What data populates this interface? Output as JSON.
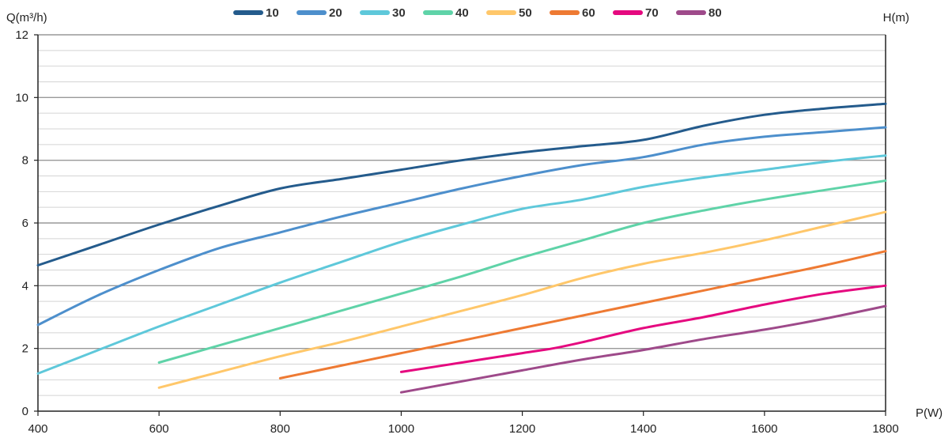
{
  "chart_data": {
    "type": "line",
    "xlabel": "P(W)",
    "ylabel": "Q(m³/h)",
    "legend_title": "H(m)",
    "legend_position": "top",
    "grid": true,
    "xlim": [
      400,
      1800
    ],
    "ylim": [
      0,
      12
    ],
    "x_ticks": [
      "400",
      "600",
      "800",
      "1000",
      "1200",
      "1400",
      "1600",
      "1800"
    ],
    "y_ticks": [
      "0",
      "2",
      "4",
      "6",
      "8",
      "10",
      "12"
    ],
    "series": [
      {
        "name": "10",
        "color": "#245b8c",
        "x": [
          400,
          500,
          600,
          700,
          800,
          900,
          1000,
          1100,
          1200,
          1300,
          1400,
          1500,
          1600,
          1700,
          1800
        ],
        "y": [
          4.65,
          5.3,
          5.95,
          6.55,
          7.1,
          7.4,
          7.7,
          8.0,
          8.25,
          8.45,
          8.65,
          9.1,
          9.45,
          9.65,
          9.8
        ]
      },
      {
        "name": "20",
        "color": "#4d8fcc",
        "x": [
          400,
          500,
          600,
          700,
          800,
          900,
          1000,
          1100,
          1200,
          1300,
          1400,
          1500,
          1600,
          1700,
          1800
        ],
        "y": [
          2.75,
          3.7,
          4.5,
          5.2,
          5.7,
          6.2,
          6.65,
          7.1,
          7.5,
          7.85,
          8.1,
          8.5,
          8.75,
          8.9,
          9.05
        ]
      },
      {
        "name": "30",
        "color": "#5ec8da",
        "x": [
          400,
          500,
          600,
          700,
          800,
          900,
          1000,
          1100,
          1200,
          1300,
          1400,
          1500,
          1600,
          1700,
          1800
        ],
        "y": [
          1.2,
          1.95,
          2.7,
          3.4,
          4.1,
          4.75,
          5.4,
          5.95,
          6.45,
          6.75,
          7.15,
          7.45,
          7.7,
          7.95,
          8.15
        ]
      },
      {
        "name": "40",
        "color": "#5fd3a8",
        "x": [
          600,
          700,
          800,
          900,
          1000,
          1100,
          1200,
          1300,
          1400,
          1500,
          1600,
          1700,
          1800
        ],
        "y": [
          1.55,
          2.1,
          2.65,
          3.2,
          3.75,
          4.3,
          4.9,
          5.45,
          6.0,
          6.4,
          6.75,
          7.05,
          7.35
        ]
      },
      {
        "name": "50",
        "color": "#ffc76a",
        "x": [
          600,
          700,
          800,
          900,
          1000,
          1100,
          1200,
          1300,
          1400,
          1500,
          1600,
          1700,
          1800
        ],
        "y": [
          0.75,
          1.25,
          1.75,
          2.2,
          2.7,
          3.2,
          3.7,
          4.25,
          4.7,
          5.05,
          5.45,
          5.9,
          6.35
        ]
      },
      {
        "name": "60",
        "color": "#ee7a33",
        "x": [
          800,
          900,
          1000,
          1100,
          1200,
          1300,
          1400,
          1500,
          1600,
          1700,
          1800
        ],
        "y": [
          1.05,
          1.45,
          1.85,
          2.25,
          2.65,
          3.05,
          3.45,
          3.85,
          4.25,
          4.65,
          5.1
        ]
      },
      {
        "name": "70",
        "color": "#e5097f",
        "x": [
          1000,
          1100,
          1200,
          1250,
          1300,
          1400,
          1500,
          1600,
          1700,
          1800
        ],
        "y": [
          1.25,
          1.55,
          1.85,
          2.0,
          2.2,
          2.65,
          3.0,
          3.4,
          3.75,
          4.0
        ]
      },
      {
        "name": "80",
        "color": "#9e4a8a",
        "x": [
          1000,
          1100,
          1200,
          1300,
          1400,
          1500,
          1600,
          1700,
          1800
        ],
        "y": [
          0.6,
          0.95,
          1.3,
          1.65,
          1.95,
          2.3,
          2.6,
          2.95,
          3.35
        ]
      }
    ]
  }
}
